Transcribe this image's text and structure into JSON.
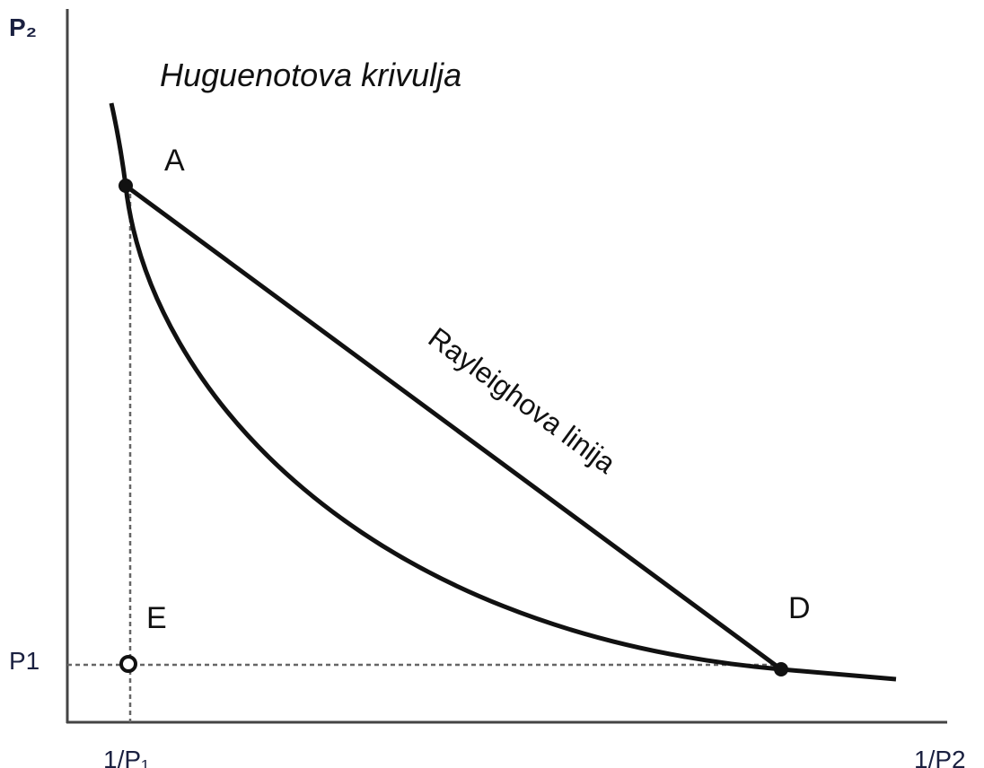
{
  "title": "Huguenotova krivulja",
  "line_label": "Rayleighova linija",
  "axes": {
    "y_label": "P₂",
    "x_label_left": "1/P₁",
    "x_label_right": "1/P2",
    "y_tick": "P1"
  },
  "points": {
    "a": "A",
    "d": "D",
    "e": "E"
  }
}
